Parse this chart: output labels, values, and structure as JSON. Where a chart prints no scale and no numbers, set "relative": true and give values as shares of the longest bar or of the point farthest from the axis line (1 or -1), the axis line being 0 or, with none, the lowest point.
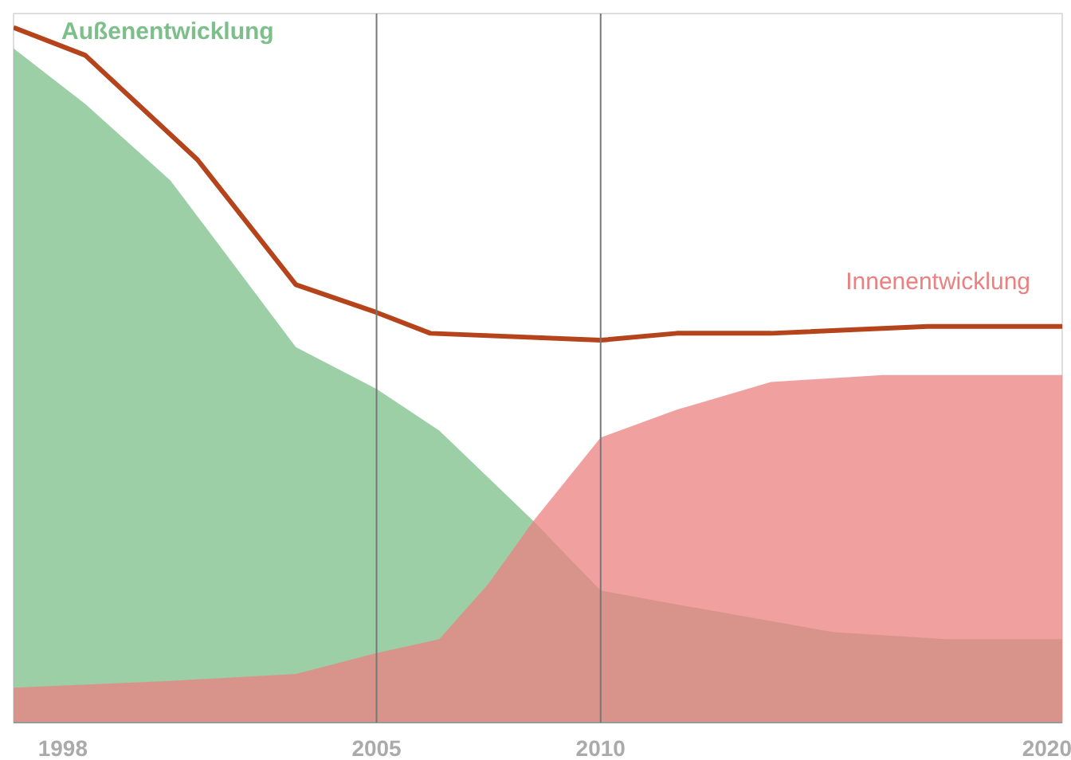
{
  "chart_data": {
    "type": "area",
    "relative": true,
    "xlim": [
      1996.9,
      2020.3
    ],
    "xticks": [
      1998,
      2005,
      2010,
      2020
    ],
    "grid": false,
    "series": [
      {
        "name": "Außenentwicklung",
        "color": "#7cbf8a",
        "x": [
          1996.9,
          1998.5,
          2000.4,
          2003.2,
          2005.0,
          2006.4,
          2008.5,
          2010.0,
          2011.7,
          2015.2,
          2017.7,
          2020.3
        ],
        "values": [
          0.97,
          0.89,
          0.78,
          0.54,
          0.48,
          0.42,
          0.29,
          0.19,
          0.17,
          0.13,
          0.12,
          0.12
        ]
      },
      {
        "name": "Innenentwicklung",
        "color": "#ec8080",
        "x": [
          1996.9,
          2000.4,
          2003.2,
          2005.0,
          2006.4,
          2007.5,
          2008.5,
          2010.0,
          2011.7,
          2013.8,
          2016.3,
          2020.3
        ],
        "values": [
          0.05,
          0.06,
          0.07,
          0.1,
          0.12,
          0.2,
          0.29,
          0.41,
          0.45,
          0.49,
          0.5,
          0.5
        ]
      },
      {
        "type": "line",
        "color": "#b5441c",
        "x": [
          1996.9,
          1998.5,
          2001.0,
          2003.2,
          2005.0,
          2006.2,
          2010.0,
          2011.7,
          2013.8,
          2017.3,
          2020.3
        ],
        "values": [
          1.0,
          0.96,
          0.81,
          0.63,
          0.59,
          0.56,
          0.55,
          0.56,
          0.56,
          0.57,
          0.57
        ]
      }
    ],
    "ref_lines": [
      {
        "axis": "x",
        "value": 2005,
        "color": "#777777"
      },
      {
        "axis": "x",
        "value": 2010,
        "color": "#777777"
      }
    ]
  }
}
